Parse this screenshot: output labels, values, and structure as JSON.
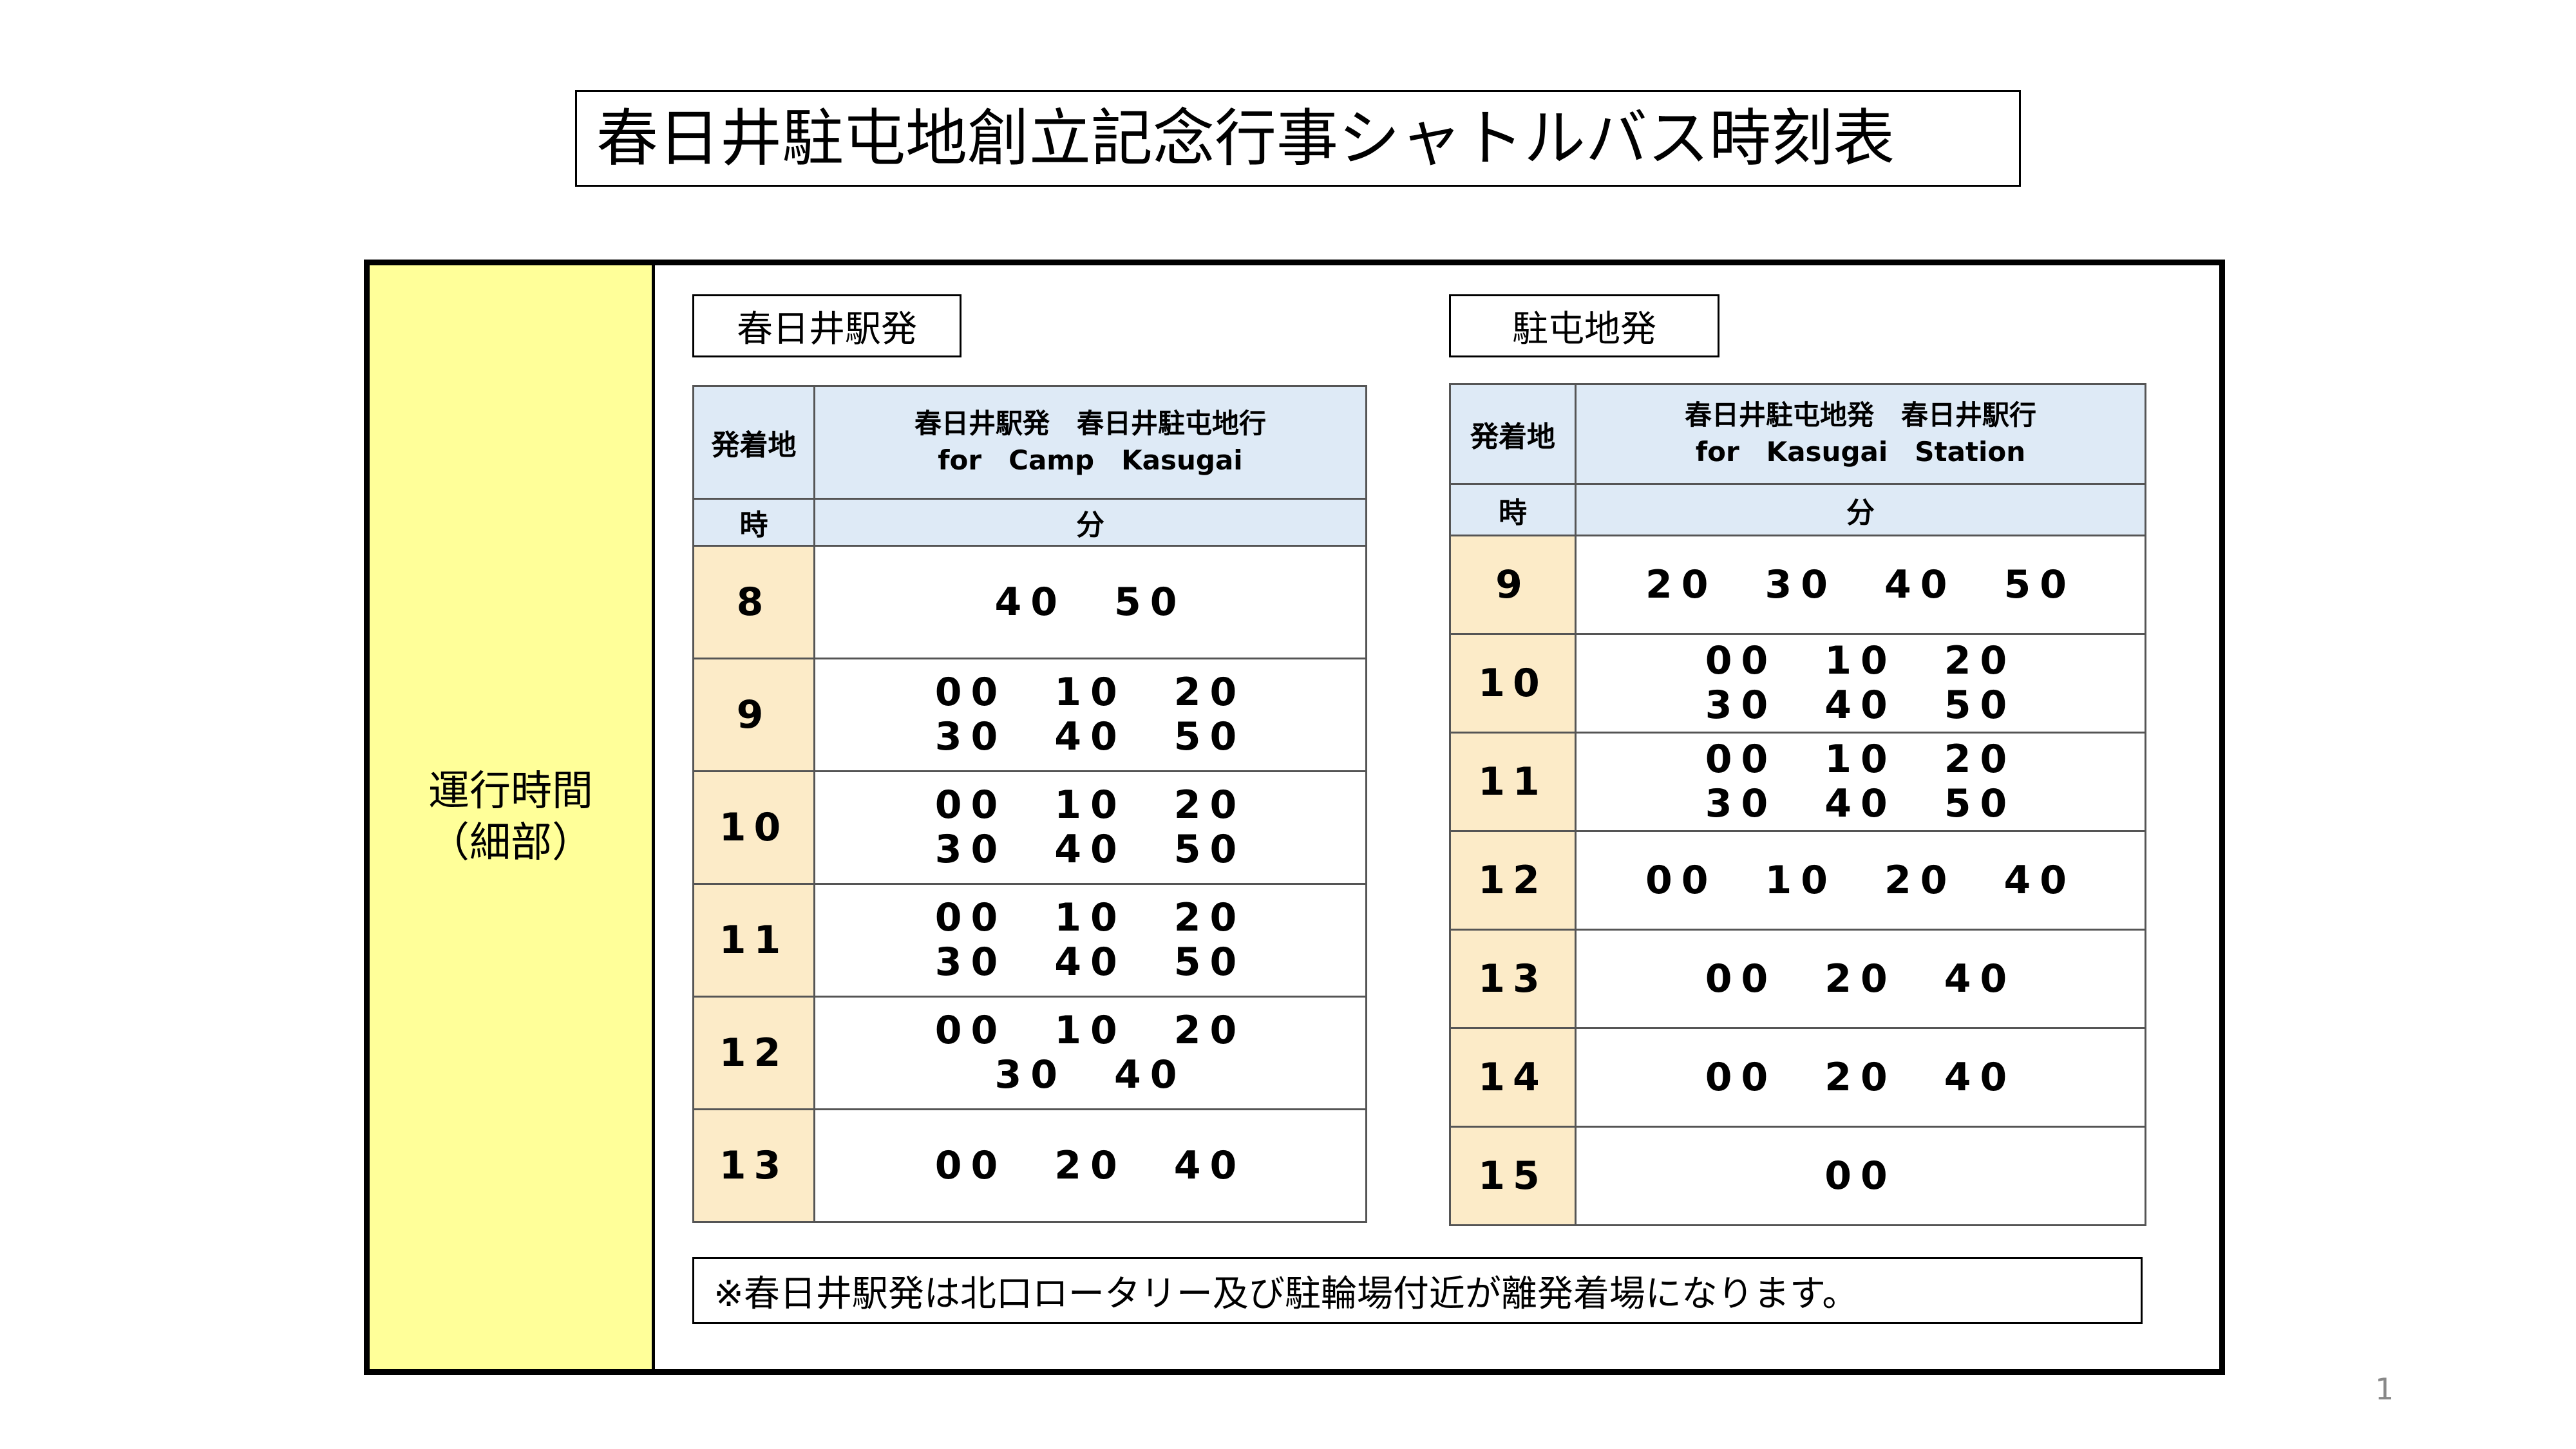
{
  "title": "春日井駐屯地創立記念行事シャトルバス時刻表",
  "side_label": {
    "line1": "運行時間",
    "line2": "（細部）"
  },
  "left": {
    "section_label": "春日井駅発",
    "head_origin": "発着地",
    "dest_line1": "春日井駅発　春日井駐屯地行",
    "dest_line2": "for　Camp　Kasugai",
    "col_hour": "時",
    "col_min": "分",
    "rows": [
      {
        "hour": "8",
        "mins": "40　50"
      },
      {
        "hour": "9",
        "mins": "00　10　20\n30　40　50"
      },
      {
        "hour": "10",
        "mins": "00　10　20\n30　40　50"
      },
      {
        "hour": "11",
        "mins": "00　10　20\n30　40　50"
      },
      {
        "hour": "12",
        "mins": "00　10　20\n30　40"
      },
      {
        "hour": "13",
        "mins": "00　20　40"
      }
    ]
  },
  "right": {
    "section_label": "駐屯地発",
    "head_origin": "発着地",
    "dest_line1": "春日井駐屯地発　春日井駅行",
    "dest_line2": "for　Kasugai　Station",
    "col_hour": "時",
    "col_min": "分",
    "rows": [
      {
        "hour": "9",
        "mins": "20　30　40　50"
      },
      {
        "hour": "10",
        "mins": "00　10　20\n30　40　50"
      },
      {
        "hour": "11",
        "mins": "00　10　20\n30　40　50"
      },
      {
        "hour": "12",
        "mins": "00　10　20　40"
      },
      {
        "hour": "13",
        "mins": "00　20　40"
      },
      {
        "hour": "14",
        "mins": "00　20　40"
      },
      {
        "hour": "15",
        "mins": "00"
      }
    ]
  },
  "note": "※春日井駅発は北口ロータリー及び駐輪場付近が離発着場になります。",
  "page_number": "1"
}
